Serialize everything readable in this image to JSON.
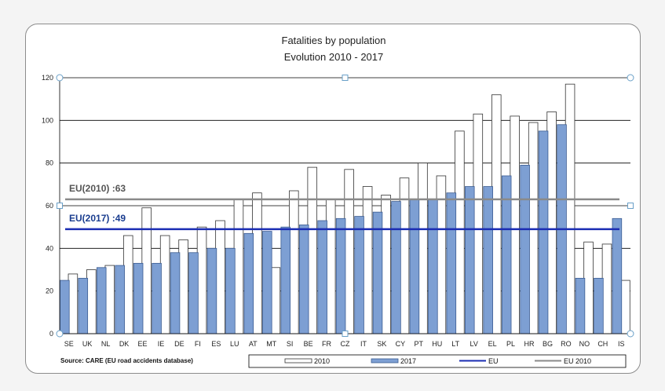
{
  "chart_data": {
    "type": "bar",
    "title": "Fatalities by population",
    "subtitle": "Evolution 2010 - 2017",
    "ylim": [
      0,
      120
    ],
    "yticks": [
      0,
      20,
      40,
      60,
      80,
      100,
      120
    ],
    "grid": true,
    "categories": [
      "SE",
      "UK",
      "NL",
      "DK",
      "EE",
      "IE",
      "DE",
      "FI",
      "ES",
      "LU",
      "AT",
      "MT",
      "SI",
      "BE",
      "FR",
      "CZ",
      "IT",
      "SK",
      "CY",
      "PT",
      "HU",
      "LT",
      "LV",
      "EL",
      "PL",
      "HR",
      "BG",
      "RO",
      "NO",
      "CH",
      "IS"
    ],
    "series": [
      {
        "name": "2010",
        "values": [
          28,
          30,
          32,
          46,
          59,
          46,
          44,
          50,
          53,
          63,
          66,
          31,
          67,
          78,
          63,
          77,
          69,
          65,
          73,
          80,
          74,
          95,
          103,
          112,
          102,
          99,
          104,
          117,
          43,
          42,
          25
        ],
        "color": "#ffffff"
      },
      {
        "name": "2017",
        "values": [
          25,
          26,
          31,
          32,
          33,
          33,
          38,
          38,
          40,
          40,
          47,
          48,
          50,
          51,
          53,
          54,
          55,
          57,
          62,
          63,
          63,
          66,
          69,
          69,
          74,
          79,
          95,
          98,
          26,
          26,
          54
        ],
        "color": "#7d9fd3"
      }
    ],
    "reference_lines": [
      {
        "name": "EU",
        "value": 49,
        "label": "EU(2017) :49",
        "color": "#1b2db3"
      },
      {
        "name": "EU 2010",
        "value": 63,
        "label": "EU(2010) :63",
        "color": "#8a8a8a"
      }
    ],
    "legend": {
      "placement": "bottom",
      "entries": [
        {
          "label": "2010",
          "kind": "bar",
          "color": "#ffffff"
        },
        {
          "label": "2017",
          "kind": "bar",
          "color": "#7d9fd3"
        },
        {
          "label": "EU",
          "kind": "line",
          "color": "#1b2db3"
        },
        {
          "label": "EU 2010",
          "kind": "line",
          "color": "#8a8a8a"
        }
      ]
    },
    "source": "Source: CARE (EU road accidents database)"
  }
}
